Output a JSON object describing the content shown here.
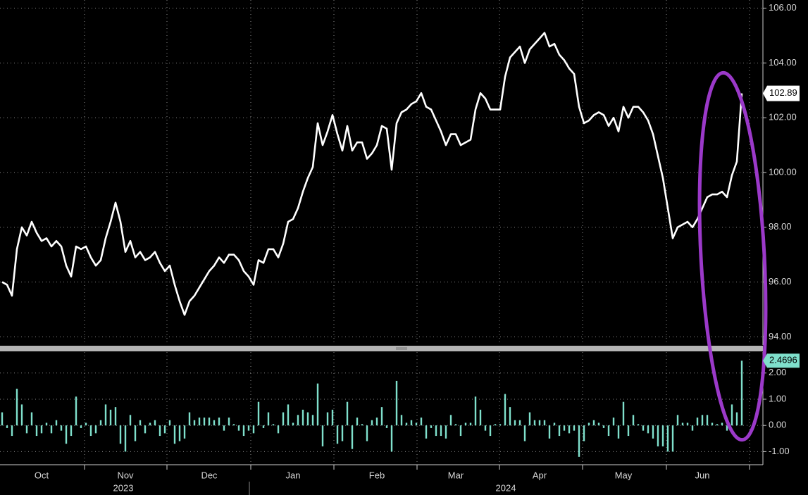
{
  "chart_data": [
    {
      "type": "line",
      "color": "#ffffff",
      "ylim": [
        93.7,
        106.3
      ],
      "yticks": [
        {
          "value": 94,
          "label": "94.00"
        },
        {
          "value": 96,
          "label": "96.00"
        },
        {
          "value": 98,
          "label": "98.00"
        },
        {
          "value": 100,
          "label": "100.00"
        },
        {
          "value": 102,
          "label": "102.00"
        },
        {
          "value": 104,
          "label": "104.00"
        },
        {
          "value": 106,
          "label": "106.00"
        }
      ],
      "values": [
        96.0,
        95.9,
        95.5,
        97.2,
        98.0,
        97.7,
        98.2,
        97.8,
        97.5,
        97.6,
        97.3,
        97.5,
        97.3,
        96.6,
        96.2,
        97.3,
        97.2,
        97.3,
        96.9,
        96.6,
        96.8,
        97.6,
        98.2,
        98.9,
        98.2,
        97.1,
        97.5,
        96.9,
        97.1,
        96.8,
        96.9,
        97.1,
        96.7,
        96.4,
        96.6,
        95.9,
        95.3,
        94.8,
        95.3,
        95.5,
        95.8,
        96.1,
        96.4,
        96.6,
        96.9,
        96.7,
        97.0,
        97.0,
        96.8,
        96.4,
        96.2,
        95.9,
        96.8,
        96.7,
        97.2,
        97.2,
        96.9,
        97.4,
        98.2,
        98.3,
        98.7,
        99.3,
        99.8,
        100.2,
        101.8,
        101.0,
        101.5,
        102.1,
        101.4,
        100.8,
        101.7,
        100.8,
        101.1,
        101.1,
        100.5,
        100.7,
        101.0,
        101.7,
        101.6,
        100.1,
        101.8,
        102.2,
        102.3,
        102.5,
        102.6,
        102.9,
        102.4,
        102.3,
        101.9,
        101.5,
        101.0,
        101.4,
        101.4,
        101.0,
        101.1,
        101.2,
        102.3,
        102.9,
        102.7,
        102.3,
        102.3,
        102.3,
        103.5,
        104.2,
        104.4,
        104.6,
        104.0,
        104.5,
        104.7,
        104.9,
        105.1,
        104.6,
        104.7,
        104.3,
        104.1,
        103.8,
        103.6,
        102.4,
        101.8,
        101.9,
        102.1,
        102.2,
        102.1,
        101.7,
        102.0,
        101.5,
        102.4,
        102.0,
        102.4,
        102.4,
        102.2,
        101.9,
        101.4,
        100.6,
        99.8,
        98.7,
        97.6,
        98.0,
        98.1,
        98.2,
        98.0,
        98.3,
        98.7,
        99.1,
        99.2,
        99.2,
        99.3,
        99.1,
        99.9,
        100.4,
        102.89
      ]
    },
    {
      "type": "bar",
      "color": "#7fe0cc",
      "ylim": [
        -1.5,
        2.8
      ],
      "yticks": [
        {
          "value": -1,
          "label": "-1.00"
        },
        {
          "value": 0,
          "label": "0.00"
        },
        {
          "value": 1,
          "label": "1.00"
        },
        {
          "value": 2,
          "label": "2.00"
        }
      ],
      "categories": [
        null,
        null,
        null,
        null,
        null,
        null,
        null,
        null,
        "Oct",
        null,
        null,
        null,
        null,
        null,
        null,
        null,
        null,
        null,
        null,
        null,
        null,
        null,
        null,
        null,
        null,
        "Nov",
        null,
        null,
        null,
        null,
        null,
        null,
        null,
        null,
        null,
        null,
        null,
        null,
        null,
        null,
        null,
        null,
        "Dec",
        null,
        null,
        null,
        null,
        null,
        null,
        null,
        null,
        null,
        null,
        null,
        null,
        null,
        null,
        null,
        null,
        "Jan",
        null,
        null,
        null,
        null,
        null,
        null,
        null,
        null,
        null,
        null,
        null,
        null,
        null,
        null,
        null,
        null,
        "Feb",
        null,
        null,
        null,
        null,
        null,
        null,
        null,
        null,
        null,
        null,
        null,
        null,
        null,
        null,
        null,
        "Mar",
        null,
        null,
        null,
        null,
        null,
        null,
        null,
        null,
        null,
        null,
        null,
        null,
        null,
        null,
        null,
        null,
        "Apr",
        null,
        null,
        null,
        null,
        null,
        null,
        null,
        null,
        null,
        null,
        null,
        null,
        null,
        null,
        null,
        null,
        "May",
        null,
        null,
        null,
        null,
        null,
        null,
        null,
        null,
        null,
        null,
        null,
        null,
        null,
        null,
        null,
        "Jun",
        null,
        null,
        null,
        null,
        null,
        null,
        null,
        null
      ],
      "values": [
        0.5,
        -0.1,
        -0.4,
        1.4,
        0.8,
        -0.3,
        0.5,
        -0.4,
        -0.3,
        0.1,
        -0.3,
        0.2,
        -0.2,
        -0.7,
        -0.4,
        1.1,
        -0.1,
        0.1,
        -0.4,
        -0.3,
        0.2,
        0.8,
        0.6,
        0.7,
        -0.7,
        -1.0,
        0.4,
        -0.6,
        0.2,
        -0.3,
        0.1,
        0.2,
        -0.4,
        -0.3,
        0.2,
        -0.7,
        -0.6,
        -0.5,
        0.5,
        0.2,
        0.3,
        0.3,
        0.3,
        0.2,
        0.3,
        -0.2,
        0.3,
        0.05,
        -0.2,
        -0.4,
        -0.2,
        -0.3,
        0.9,
        -0.1,
        0.5,
        0.05,
        -0.3,
        0.5,
        0.8,
        0.1,
        0.4,
        0.6,
        0.5,
        0.4,
        1.6,
        -0.8,
        0.5,
        0.6,
        -0.7,
        -0.6,
        0.9,
        -0.9,
        0.3,
        0.05,
        -0.6,
        0.2,
        0.3,
        0.7,
        -0.1,
        -1.0,
        1.7,
        0.4,
        0.1,
        0.2,
        0.1,
        0.3,
        -0.5,
        -0.1,
        -0.4,
        -0.4,
        -0.5,
        0.4,
        0.05,
        -0.4,
        0.1,
        0.1,
        1.1,
        0.6,
        -0.2,
        -0.4,
        0.05,
        0.05,
        1.2,
        0.7,
        0.2,
        0.2,
        -0.6,
        0.5,
        0.2,
        0.2,
        0.2,
        -0.5,
        0.1,
        -0.4,
        -0.2,
        -0.3,
        -0.2,
        -1.2,
        -0.6,
        0.1,
        0.2,
        0.1,
        -0.1,
        -0.4,
        0.3,
        -0.5,
        0.9,
        -0.4,
        0.4,
        0.05,
        -0.2,
        -0.3,
        -0.5,
        -0.8,
        -0.8,
        -1.0,
        -1.0,
        0.4,
        0.1,
        0.1,
        -0.2,
        0.3,
        0.4,
        0.4,
        0.1,
        0.05,
        0.1,
        -0.2,
        0.8,
        0.5,
        2.4696
      ],
      "annotations": [
        "2023",
        "2024"
      ]
    }
  ]
}
